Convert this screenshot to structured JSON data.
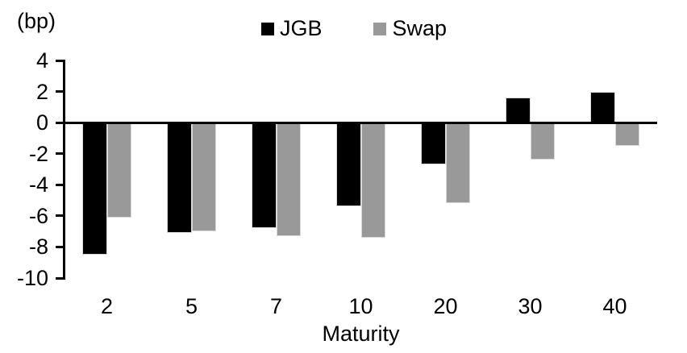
{
  "chart_data": {
    "type": "bar",
    "title": "",
    "y_unit_label": "(bp)",
    "xlabel": "Maturity",
    "categories": [
      "2",
      "5",
      "7",
      "10",
      "20",
      "30",
      "40"
    ],
    "series": [
      {
        "name": "JGB",
        "color": "#000000",
        "values": [
          -8.5,
          -7.1,
          -6.8,
          -5.4,
          -2.7,
          1.6,
          2.0
        ]
      },
      {
        "name": "Swap",
        "color": "#999999",
        "values": [
          -6.1,
          -7.0,
          -7.3,
          -7.4,
          -5.2,
          -2.4,
          -1.5
        ]
      }
    ],
    "y_ticks": [
      4,
      2,
      0,
      -2,
      -4,
      -6,
      -8,
      -10
    ],
    "ylim": [
      -10,
      4
    ],
    "grid": false,
    "legend_position": "top",
    "baseline": 0
  }
}
